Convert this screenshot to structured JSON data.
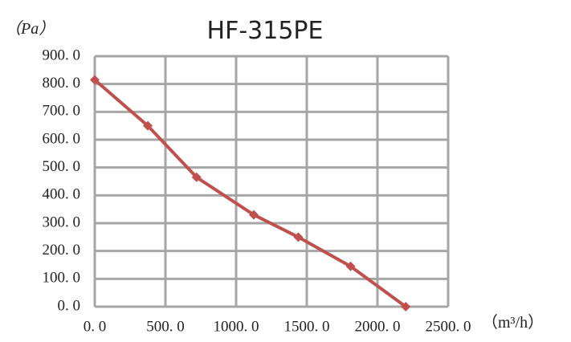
{
  "chart_data": {
    "type": "line",
    "title": "HF-315PE",
    "y_label": "（Pa）",
    "x_label": "（m³/h）",
    "series": [
      {
        "name": "HF-315PE",
        "color": "#c0504d",
        "x": [
          0,
          375,
          720,
          1125,
          1440,
          1810,
          2200
        ],
        "values": [
          815,
          650,
          465,
          330,
          250,
          145,
          0
        ]
      }
    ],
    "xlim": [
      0,
      2500
    ],
    "xticks": [
      {
        "value": 0,
        "label": "0. 0"
      },
      {
        "value": 500,
        "label": "500. 0"
      },
      {
        "value": 1000,
        "label": "1000. 0"
      },
      {
        "value": 1500,
        "label": "1500. 0"
      },
      {
        "value": 2000,
        "label": "2000. 0"
      },
      {
        "value": 2500,
        "label": "2500. 0"
      }
    ],
    "ylim": [
      0,
      900
    ],
    "yticks": [
      {
        "value": 0,
        "label": "0. 0"
      },
      {
        "value": 100,
        "label": "100. 0"
      },
      {
        "value": 200,
        "label": "200. 0"
      },
      {
        "value": 300,
        "label": "300. 0"
      },
      {
        "value": 400,
        "label": "400. 0"
      },
      {
        "value": 500,
        "label": "500. 0"
      },
      {
        "value": 600,
        "label": "600. 0"
      },
      {
        "value": 700,
        "label": "700. 0"
      },
      {
        "value": 800,
        "label": "800. 0"
      },
      {
        "value": 900,
        "label": "900. 0"
      }
    ],
    "grid": true
  }
}
